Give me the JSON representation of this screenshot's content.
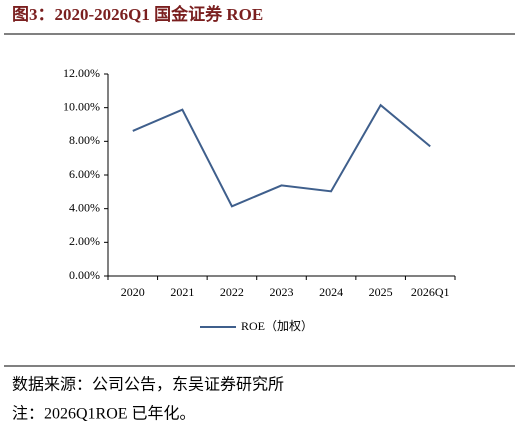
{
  "chart_data": {
    "type": "line",
    "title": "图3：2020-2026Q1  国金证券 ROE",
    "categories": [
      "2020",
      "2021",
      "2022",
      "2023",
      "2024",
      "2025",
      "2026Q1"
    ],
    "series": [
      {
        "name": "ROE（加权）",
        "color": "#3f5f8c",
        "values": [
          8.62,
          9.88,
          4.14,
          5.38,
          5.03,
          10.15,
          7.7
        ]
      }
    ],
    "ylim": [
      0,
      12
    ],
    "yticks": [
      {
        "value": 0,
        "label": "0.00%"
      },
      {
        "value": 2,
        "label": "2.00%"
      },
      {
        "value": 4,
        "label": "4.00%"
      },
      {
        "value": 6,
        "label": "6.00%"
      },
      {
        "value": 8,
        "label": "8.00%"
      },
      {
        "value": 10,
        "label": "10.00%"
      },
      {
        "value": 12,
        "label": "12.00%"
      }
    ],
    "grid": false,
    "notes": [
      "数据来源：公司公告，东吴证券研究所",
      "注：2026Q1ROE 已年化。"
    ]
  }
}
